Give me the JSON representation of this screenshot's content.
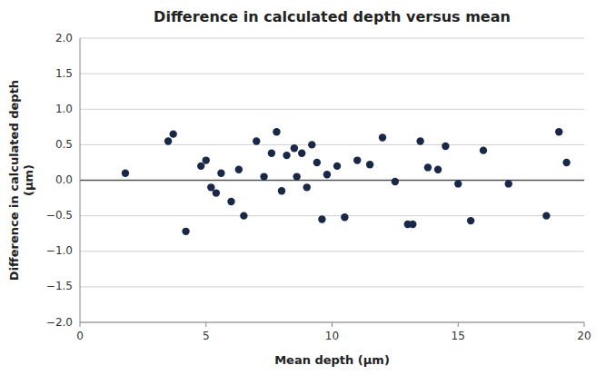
{
  "chart_data": {
    "type": "scatter",
    "title": "Difference in calculated depth versus mean",
    "xlabel": "Mean depth (μm)",
    "ylabel": "Difference in calculated depth\n(μm)",
    "x": [
      1.8,
      3.5,
      3.7,
      4.2,
      4.8,
      5.0,
      5.2,
      5.4,
      5.6,
      6.0,
      6.3,
      6.5,
      7.0,
      7.3,
      7.6,
      7.8,
      8.0,
      8.2,
      8.5,
      8.6,
      8.8,
      9.0,
      9.2,
      9.4,
      9.6,
      9.8,
      10.2,
      10.5,
      11.0,
      11.5,
      12.0,
      12.5,
      13.0,
      13.2,
      13.5,
      13.8,
      14.2,
      14.5,
      15.0,
      15.5,
      16.0,
      17.0,
      18.5,
      19.0,
      19.3
    ],
    "y": [
      0.1,
      0.55,
      0.65,
      -0.72,
      0.2,
      0.28,
      -0.1,
      -0.18,
      0.1,
      -0.3,
      0.15,
      -0.5,
      0.55,
      0.05,
      0.38,
      0.68,
      -0.15,
      0.35,
      0.45,
      0.05,
      0.38,
      -0.1,
      0.5,
      0.25,
      -0.55,
      0.08,
      0.2,
      -0.52,
      0.28,
      0.22,
      0.6,
      -0.02,
      -0.62,
      -0.62,
      0.55,
      0.18,
      0.15,
      0.48,
      -0.05,
      -0.57,
      0.42,
      -0.05,
      -0.5,
      0.68,
      0.25
    ],
    "color": "#1a2848",
    "xlim": [
      0,
      20
    ],
    "ylim": [
      -2,
      2
    ],
    "xticks": [
      0,
      5,
      10,
      15,
      20
    ],
    "yticks": [
      {
        "value": -2,
        "label": "−2.0"
      },
      {
        "value": -1.5,
        "label": "−1.5"
      },
      {
        "value": -1,
        "label": "−1.0"
      },
      {
        "value": -0.5,
        "label": "−0.5"
      },
      {
        "value": 0,
        "label": "0.0"
      },
      {
        "value": 0.5,
        "label": "0.5"
      },
      {
        "value": 1,
        "label": "1.0"
      },
      {
        "value": 1.5,
        "label": "1.5"
      },
      {
        "value": 2,
        "label": "2.0"
      }
    ],
    "grid": true
  }
}
